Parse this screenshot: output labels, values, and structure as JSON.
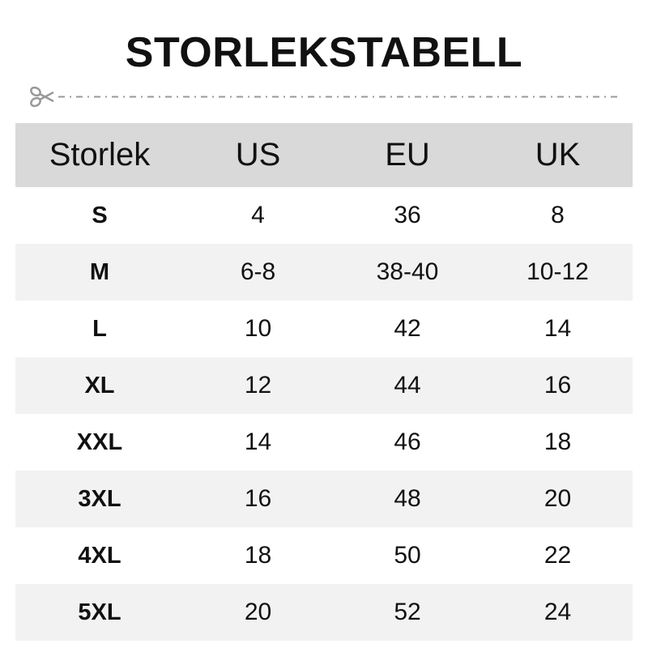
{
  "title": "STORLEKSTABELL",
  "cut_icon": "scissors-icon",
  "colors": {
    "header_bg": "#d9d9d9",
    "alt_row_bg": "#f2f2f2",
    "dash": "#999999"
  },
  "table": {
    "headers": [
      "Storlek",
      "US",
      "EU",
      "UK"
    ],
    "rows": [
      [
        "S",
        "4",
        "36",
        "8"
      ],
      [
        "M",
        "6-8",
        "38-40",
        "10-12"
      ],
      [
        "L",
        "10",
        "42",
        "14"
      ],
      [
        "XL",
        "12",
        "44",
        "16"
      ],
      [
        "XXL",
        "14",
        "46",
        "18"
      ],
      [
        "3XL",
        "16",
        "48",
        "20"
      ],
      [
        "4XL",
        "18",
        "50",
        "22"
      ],
      [
        "5XL",
        "20",
        "52",
        "24"
      ]
    ]
  }
}
